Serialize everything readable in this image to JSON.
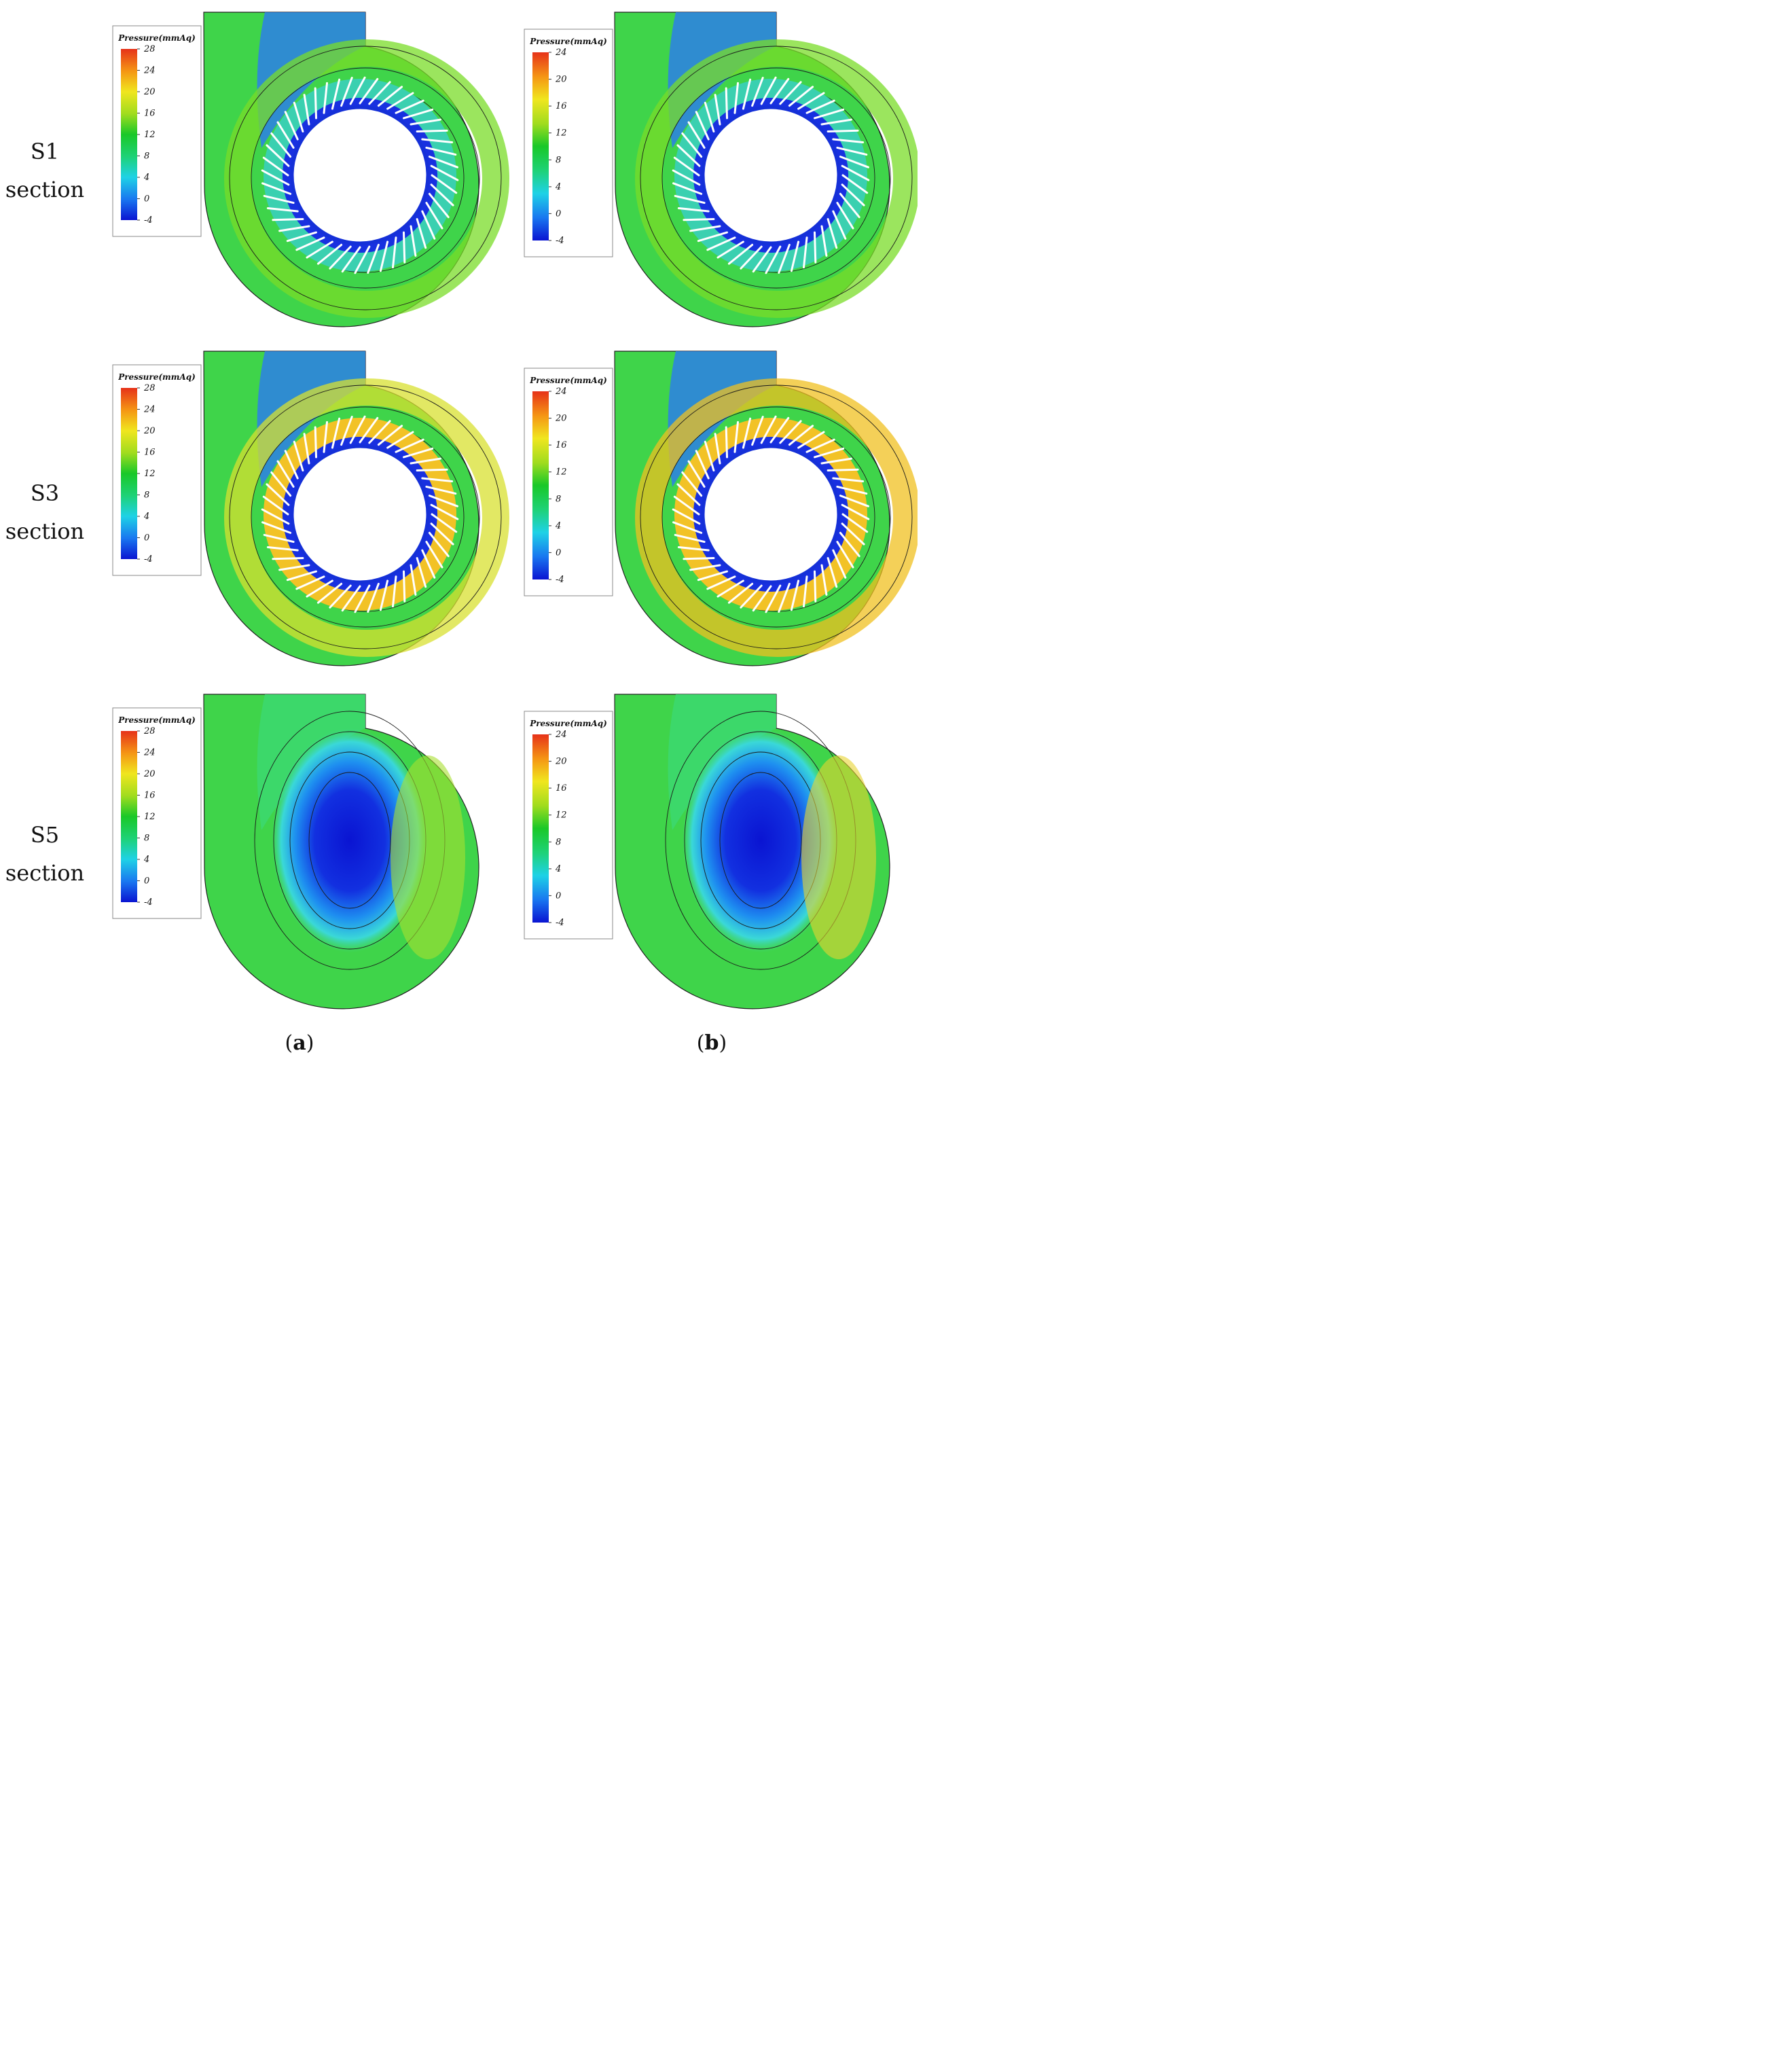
{
  "figure": {
    "rows": [
      {
        "name_label": "S1",
        "type_label": "section",
        "kind": "rotor"
      },
      {
        "name_label": "S3",
        "type_label": "section",
        "kind": "rotor"
      },
      {
        "name_label": "S5",
        "type_label": "section",
        "kind": "cavity"
      }
    ],
    "columns": [
      {
        "label": "a",
        "legend_ticks": [
          "28",
          "24",
          "20",
          "16",
          "12",
          "8",
          "4",
          "0",
          "-4"
        ],
        "legend_min": -4,
        "legend_max": 28
      },
      {
        "label": "b",
        "legend_ticks": [
          "24",
          "20",
          "16",
          "12",
          "8",
          "4",
          "0",
          "-4"
        ],
        "legend_min": -4,
        "legend_max": 24
      }
    ],
    "legend_title": "Pressure(mmAq)",
    "legend_colors": [
      "#0a14d2",
      "#1976f0",
      "#1ed2e6",
      "#1ed278",
      "#19c828",
      "#a0dc1e",
      "#f0e61e",
      "#f59614",
      "#e63219"
    ],
    "blade_count": 48,
    "colors": {
      "low": "#0a14d2",
      "mid": "#2ad84a",
      "high": "#e8321e",
      "blade": "#ffffff",
      "contour": "#1a1a1a"
    }
  }
}
